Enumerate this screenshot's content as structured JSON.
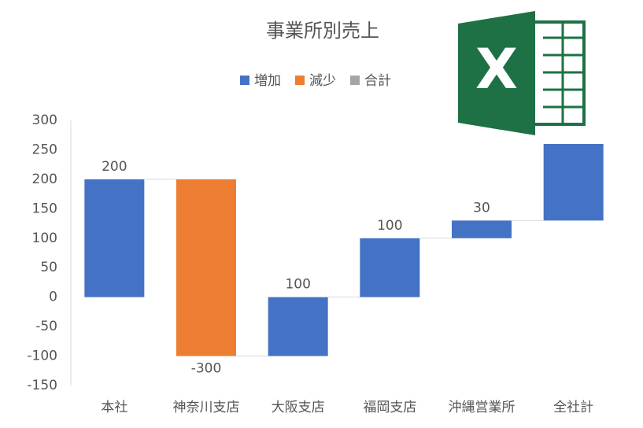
{
  "chart_data": {
    "type": "waterfall",
    "title": "事業所別売上",
    "categories": [
      "本社",
      "神奈川支店",
      "大阪支店",
      "福岡支店",
      "沖縄営業所",
      "全社計"
    ],
    "values": [
      200,
      -300,
      100,
      100,
      30,
      130
    ],
    "value_labels": [
      "200",
      "-300",
      "100",
      "100",
      "30",
      null
    ],
    "legend": [
      {
        "name": "増加",
        "color": "#4472c4"
      },
      {
        "name": "減少",
        "color": "#ed7d31"
      },
      {
        "name": "合計",
        "color": "#a5a5a5"
      }
    ],
    "ylim": [
      -150,
      300
    ],
    "yticks": [
      -150,
      -100,
      -50,
      0,
      50,
      100,
      150,
      200,
      250,
      300
    ]
  }
}
